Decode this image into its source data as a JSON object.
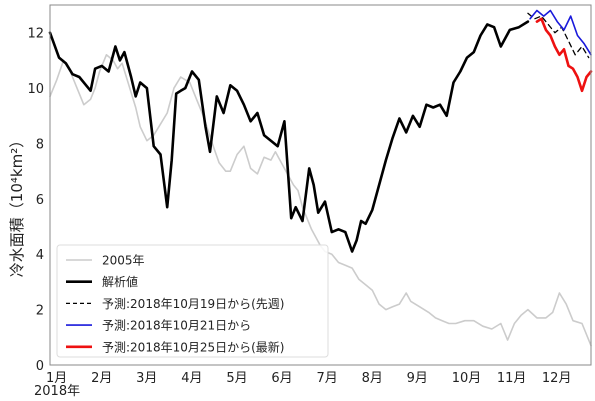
{
  "chart_data": {
    "type": "line",
    "ylabel": "冷水面積（10⁴km²）",
    "ylim": [
      0,
      13
    ],
    "yticks": [
      0,
      2,
      4,
      6,
      8,
      10,
      12
    ],
    "xlim": [
      0,
      12
    ],
    "xtick_labels": [
      "1月",
      "2月",
      "3月",
      "4月",
      "5月",
      "6月",
      "7月",
      "8月",
      "9月",
      "10月",
      "11月",
      "12月"
    ],
    "xyear_label": "2018年",
    "grid": false,
    "legend_position": "bottom-left",
    "series": [
      {
        "name": "2005年",
        "color": "#cccccc",
        "dash": "",
        "x": [
          0,
          0.15,
          0.3,
          0.45,
          0.6,
          0.75,
          0.9,
          1.0,
          1.1,
          1.25,
          1.4,
          1.5,
          1.6,
          1.75,
          1.9,
          2.0,
          2.15,
          2.3,
          2.45,
          2.6,
          2.75,
          2.9,
          3.0,
          3.1,
          3.25,
          3.4,
          3.5,
          3.6,
          3.75,
          3.9,
          4.0,
          4.15,
          4.3,
          4.45,
          4.6,
          4.75,
          4.9,
          5.0,
          5.2,
          5.4,
          5.5,
          5.6,
          5.8,
          6.0,
          6.1,
          6.25,
          6.4,
          6.55,
          6.7,
          6.85,
          7.0,
          7.15,
          7.3,
          7.45,
          7.6,
          7.75,
          7.9,
          8.0,
          8.2,
          8.4,
          8.55,
          8.7,
          8.85,
          9.0,
          9.2,
          9.4,
          9.6,
          9.8,
          10.0,
          10.15,
          10.3,
          10.45,
          10.6,
          10.8,
          11.0,
          11.15,
          11.3,
          11.45,
          11.6,
          11.8,
          12.0
        ],
        "y": [
          9.7,
          10.3,
          11.0,
          10.6,
          10.0,
          9.4,
          9.6,
          10.0,
          10.6,
          11.2,
          11.0,
          10.7,
          10.9,
          10.1,
          9.3,
          8.6,
          8.1,
          8.3,
          8.7,
          9.1,
          10.0,
          10.4,
          10.3,
          10.2,
          9.6,
          9.0,
          8.5,
          8.0,
          7.3,
          7.0,
          7.0,
          7.6,
          7.9,
          7.1,
          6.9,
          7.5,
          7.4,
          7.7,
          7.1,
          6.5,
          6.3,
          5.7,
          4.9,
          4.3,
          4.1,
          4.0,
          3.7,
          3.6,
          3.5,
          3.1,
          2.9,
          2.7,
          2.2,
          2.0,
          2.1,
          2.2,
          2.6,
          2.3,
          2.1,
          1.9,
          1.7,
          1.6,
          1.5,
          1.5,
          1.6,
          1.6,
          1.4,
          1.3,
          1.5,
          0.9,
          1.5,
          1.8,
          2.0,
          1.7,
          1.7,
          1.9,
          2.6,
          2.2,
          1.6,
          1.5,
          0.7
        ]
      },
      {
        "name": "解析値",
        "color": "#000000",
        "dash": "",
        "x": [
          0,
          0.2,
          0.35,
          0.5,
          0.65,
          0.8,
          0.9,
          1.0,
          1.15,
          1.3,
          1.45,
          1.55,
          1.65,
          1.8,
          1.9,
          2.0,
          2.15,
          2.3,
          2.45,
          2.6,
          2.7,
          2.8,
          2.9,
          3.0,
          3.15,
          3.3,
          3.45,
          3.55,
          3.7,
          3.85,
          4.0,
          4.15,
          4.3,
          4.45,
          4.6,
          4.75,
          4.9,
          5.05,
          5.2,
          5.35,
          5.45,
          5.6,
          5.75,
          5.85,
          5.95,
          6.1,
          6.25,
          6.4,
          6.55,
          6.7,
          6.8,
          6.9,
          7.0,
          7.15,
          7.3,
          7.45,
          7.6,
          7.75,
          7.9,
          8.05,
          8.2,
          8.35,
          8.5,
          8.65,
          8.8,
          8.95,
          9.1,
          9.25,
          9.4,
          9.55,
          9.7,
          9.85,
          10.0,
          10.2,
          10.4,
          10.6
        ],
        "y": [
          12.0,
          11.1,
          10.9,
          10.5,
          10.4,
          10.1,
          9.9,
          10.7,
          10.8,
          10.6,
          11.5,
          11.0,
          11.3,
          10.4,
          9.7,
          10.2,
          10.0,
          7.9,
          7.6,
          5.7,
          7.4,
          9.8,
          9.9,
          10.0,
          10.6,
          10.3,
          8.6,
          7.7,
          9.7,
          9.1,
          10.1,
          9.9,
          9.4,
          8.8,
          9.1,
          8.3,
          8.1,
          7.9,
          8.8,
          5.3,
          5.7,
          5.2,
          7.1,
          6.5,
          5.5,
          5.9,
          4.8,
          4.9,
          4.8,
          4.1,
          4.5,
          5.2,
          5.1,
          5.6,
          6.5,
          7.4,
          8.2,
          8.9,
          8.4,
          9.0,
          8.6,
          9.4,
          9.3,
          9.4,
          9.0,
          10.2,
          10.6,
          11.1,
          11.3,
          11.9,
          12.3,
          12.2,
          11.5,
          12.1,
          12.2,
          12.4
        ]
      },
      {
        "name": "予測:2018年10月19日から(先週)",
        "color": "#000000",
        "dash": "5,4",
        "x": [
          10.6,
          10.75,
          10.9,
          11.05,
          11.2,
          11.35,
          11.5,
          11.65,
          11.8,
          11.95
        ],
        "y": [
          12.7,
          12.5,
          12.6,
          12.3,
          12.0,
          12.2,
          11.7,
          11.2,
          11.5,
          11.1
        ]
      },
      {
        "name": "予測:2018年10月21日から",
        "color": "#1a1adb",
        "dash": "",
        "x": [
          10.65,
          10.8,
          10.95,
          11.1,
          11.25,
          11.4,
          11.55,
          11.7,
          11.85,
          12.0
        ],
        "y": [
          12.5,
          12.8,
          12.6,
          12.8,
          12.4,
          12.1,
          12.6,
          11.9,
          11.6,
          11.2
        ]
      },
      {
        "name": "予測:2018年10月25日から(最新)",
        "color": "#ee1111",
        "dash": "",
        "x": [
          10.8,
          10.9,
          11.0,
          11.1,
          11.2,
          11.3,
          11.4,
          11.5,
          11.6,
          11.7,
          11.8,
          11.9,
          12.0
        ],
        "y": [
          12.4,
          12.5,
          12.1,
          11.9,
          11.5,
          11.2,
          11.4,
          10.8,
          10.7,
          10.4,
          9.9,
          10.4,
          10.6
        ]
      }
    ]
  }
}
